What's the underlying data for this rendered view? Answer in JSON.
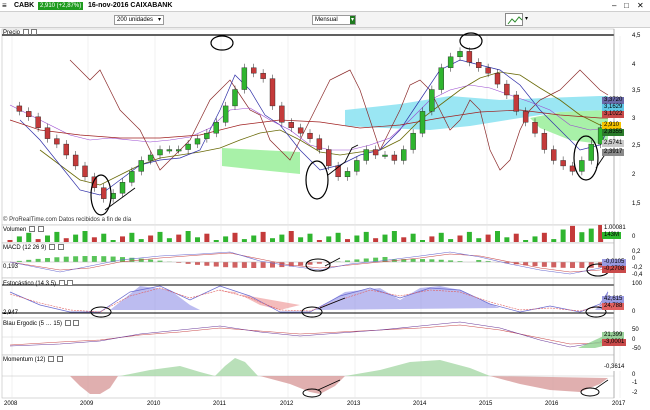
{
  "titlebar": {
    "ticker": "CABK",
    "change": "2,910 (+2,87%)",
    "info": "16-nov-2016 CAIXABANK"
  },
  "toolbar": {
    "units_value": "200 unidades",
    "period_value": "Mensual"
  },
  "panels": {
    "price": {
      "title": "Precio",
      "watermark": "© ProRealTime.com  Datos recibidos a fin de día",
      "y_ticks": [
        "4,5",
        "4",
        "3,5",
        "3",
        "2,5",
        "2",
        "1,5"
      ],
      "tags": [
        {
          "text": "3,3720",
          "color": "#6a6aa8"
        },
        {
          "text": "3,1629",
          "color": "#5fc8e6"
        },
        {
          "text": "3,1022",
          "color": "#c94a4a"
        },
        {
          "text": "2,910",
          "color": "#f7c400"
        },
        {
          "text": "2,8355",
          "color": "#2b7c2b"
        },
        {
          "text": "2,5741",
          "color": "#c9c9c9"
        },
        {
          "text": "2,3917",
          "color": "#8a8a8a"
        }
      ]
    },
    "volume": {
      "title": "Volumen",
      "y_ticks": [
        "0"
      ],
      "tags": [
        {
          "text": "1.00081",
          "color": "#ffffff"
        },
        {
          "text": "143M",
          "color": "#2bb52b"
        }
      ]
    },
    "macd": {
      "title": "MACD (12 26 9)",
      "left_value": "0,193",
      "y_ticks": [
        "0,2",
        "0",
        "-0,2",
        "-0,4"
      ],
      "tags": [
        {
          "text": "-0,0105",
          "color": "#9a9ae0"
        },
        {
          "text": "-0,2708",
          "color": "#c94a4a"
        }
      ]
    },
    "stochastic": {
      "title": "Estocástico (14 3 5)",
      "left_value": "2,947",
      "y_ticks": [
        "100",
        "0"
      ],
      "tags": [
        {
          "text": "42,615",
          "color": "#9a9ae0"
        },
        {
          "text": "24,788",
          "color": "#e06060"
        }
      ]
    },
    "blau": {
      "title": "Blau Ergodic (5 … 15)",
      "y_ticks": [
        "50",
        "0",
        "-50"
      ],
      "tags": [
        {
          "text": "21,399",
          "color": "#9ad09a"
        },
        {
          "text": "-3,0001",
          "color": "#c94a4a"
        }
      ]
    },
    "momentum": {
      "title": "Momentum (12)",
      "y_ticks": [
        "0",
        "-1",
        "-2"
      ],
      "tags": [
        {
          "text": "-0,3614",
          "color": "#ffffff"
        }
      ]
    }
  },
  "x_axis": [
    "2008",
    "2009",
    "2010",
    "2011",
    "2012",
    "2013",
    "2014",
    "2015",
    "2016",
    "2017"
  ],
  "chart_data": [
    {
      "type": "line",
      "title": "Precio",
      "x": [
        "2008",
        "2009",
        "2010",
        "2011",
        "2012",
        "2013",
        "2014",
        "2015",
        "2016",
        "2017"
      ],
      "series": [
        {
          "values": [
            3.4,
            1.6,
            2.5,
            4.0,
            2.2,
            2.7,
            4.3,
            3.9,
            2.1,
            2.91
          ]
        }
      ],
      "ylim": [
        1.3,
        4.6
      ]
    }
  ],
  "colors": {
    "candle_up": "#2fb52f",
    "candle_down": "#c43a3a",
    "cloud_green": "#9ff09f",
    "cloud_cyan": "#8fe3f2",
    "grid": "#e3e3e3",
    "annotation": "#000000"
  }
}
